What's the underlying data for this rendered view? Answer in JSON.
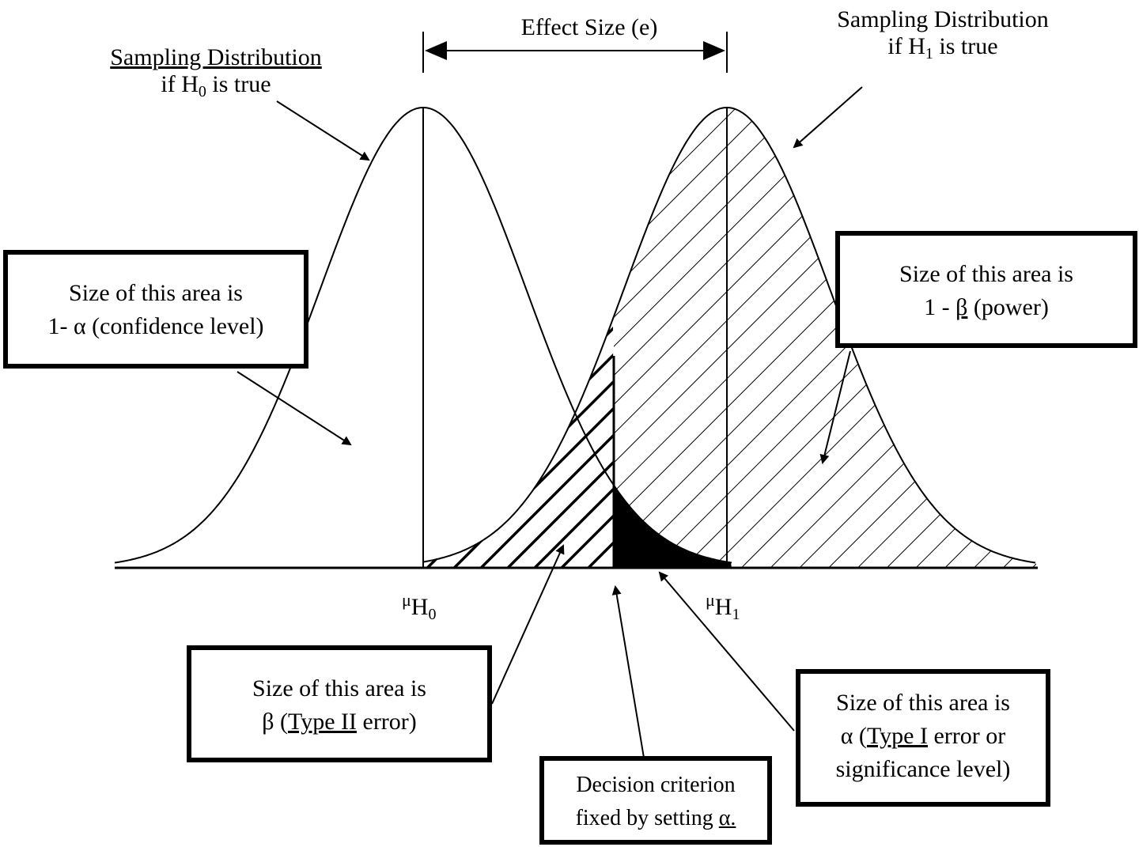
{
  "labels": {
    "h0_title": "Sampling Distribution",
    "h0_if": "if H",
    "h0_sub": "0",
    "h0_true": " is true",
    "h1_title": "Sampling Distribution",
    "h1_if": "if H",
    "h1_sub": "1",
    "h1_true": " is true",
    "effect_size": "Effect Size (e)",
    "mu_h0_mu": "μ",
    "mu_h0_h": "H",
    "mu_h0_sub": "0",
    "mu_h1_mu": "μ",
    "mu_h1_h": "H",
    "mu_h1_sub": "1"
  },
  "boxes": {
    "confidence": {
      "line1": "Size of this area is",
      "line2": "1- α (confidence level)"
    },
    "power": {
      "line1": "Size of this area is",
      "line2_pre": "1 - ",
      "line2_beta": "β",
      "line2_post": " (power)"
    },
    "type2": {
      "line1": "Size of this area is",
      "line2_pre": "β (",
      "line2_u": "Type II",
      "line2_post": " error)"
    },
    "type1": {
      "line1": "Size of this area is",
      "line2_pre": "α (",
      "line2_u": "Type I",
      "line2_post": " error or",
      "line3": "significance level)"
    },
    "criterion": {
      "line1": "Decision criterion",
      "line2_pre": "fixed by setting ",
      "line2_u": "α."
    }
  },
  "colors": {
    "ink": "#000000",
    "paper": "#ffffff"
  }
}
